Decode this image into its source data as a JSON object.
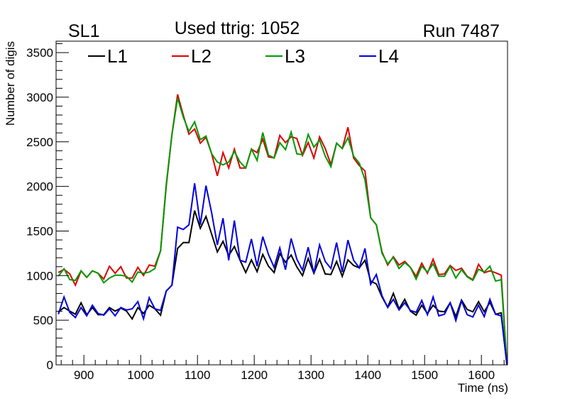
{
  "chart_data": {
    "type": "line",
    "title_left": "SL1",
    "title_center": "Used ttrig: 1052",
    "title_right": "Run 7487",
    "xlabel": "Time (ns)",
    "ylabel": "Number of digis",
    "xlim": [
      851,
      1646
    ],
    "ylim": [
      0,
      3628
    ],
    "xticks": [
      "900",
      "1000",
      "1100",
      "1200",
      "1300",
      "1400",
      "1500",
      "1600"
    ],
    "yticks": [
      "0",
      "500",
      "1000",
      "1500",
      "2000",
      "2500",
      "3000",
      "3500"
    ],
    "grid": false,
    "legend": "top",
    "x_start": 855,
    "x_step": 10,
    "series": [
      {
        "name": "L1",
        "color": "#000000",
        "values": [
          594,
          642,
          602,
          567,
          695,
          562,
          642,
          562,
          562,
          642,
          602,
          636,
          602,
          515,
          642,
          575,
          668,
          628,
          557,
          827,
          893,
          1305,
          1371,
          1371,
          1729,
          1530,
          1663,
          1464,
          1265,
          1384,
          1225,
          1326,
          1172,
          1034,
          1177,
          1045,
          1238,
          1106,
          1034,
          1247,
          1150,
          1231,
          1098,
          1000,
          1193,
          1026,
          1185,
          1018,
          1013,
          1159,
          992,
          1177,
          1114,
          1087,
          1172,
          939,
          907,
          761,
          647,
          801,
          628,
          734,
          602,
          557,
          668,
          575,
          668,
          602,
          594,
          695,
          541,
          726,
          620,
          594,
          708,
          594,
          700,
          567,
          583,
          0
        ]
      },
      {
        "name": "L2",
        "color": "#dd0000",
        "values": [
          1035,
          1070,
          1020,
          893,
          1053,
          981,
          1053,
          1026,
          962,
          1106,
          1026,
          1100,
          973,
          973,
          1092,
          1002,
          1119,
          1106,
          1278,
          2000,
          2580,
          3031,
          2800,
          2585,
          2644,
          2485,
          2550,
          2365,
          2119,
          2379,
          2206,
          2418,
          2206,
          2206,
          2418,
          2379,
          2530,
          2330,
          2320,
          2572,
          2490,
          2556,
          2538,
          2347,
          2493,
          2318,
          2556,
          2424,
          2246,
          2485,
          2424,
          2663,
          2318,
          2233,
          2174,
          1649,
          1570,
          1265,
          1119,
          1212,
          1119,
          1159,
          1092,
          992,
          1140,
          1026,
          1185,
          1013,
          1018,
          1114,
          1058,
          1084,
          992,
          955,
          1127,
          1032,
          1053,
          1032,
          1005,
          0
        ]
      },
      {
        "name": "L3",
        "color": "#009900",
        "values": [
          994,
          1077,
          955,
          947,
          1053,
          981,
          1053,
          1026,
          920,
          973,
          1005,
          1005,
          992,
          928,
          1040,
          1026,
          1040,
          1080,
          1278,
          2021,
          2580,
          2990,
          2776,
          2617,
          2723,
          2524,
          2564,
          2365,
          2273,
          2241,
          2273,
          2392,
          2273,
          2206,
          2418,
          2291,
          2604,
          2352,
          2318,
          2490,
          2412,
          2609,
          2365,
          2355,
          2583,
          2440,
          2519,
          2339,
          2220,
          2485,
          2424,
          2546,
          2339,
          2260,
          2074,
          1649,
          1570,
          1251,
          1132,
          1204,
          1080,
          1146,
          1092,
          960,
          1106,
          1040,
          1132,
          992,
          992,
          1106,
          973,
          1066,
          986,
          947,
          1072,
          1040,
          1106,
          939,
          955,
          0
        ]
      },
      {
        "name": "L4",
        "color": "#0000dd",
        "values": [
          567,
          761,
          589,
          530,
          642,
          549,
          668,
          575,
          557,
          628,
          549,
          642,
          615,
          628,
          708,
          515,
          753,
          628,
          610,
          827,
          893,
          1543,
          1517,
          1570,
          2034,
          1570,
          2008,
          1703,
          1344,
          1644,
          1172,
          1618,
          1172,
          1151,
          1411,
          1106,
          1437,
          1238,
          1092,
          1310,
          1066,
          1416,
          1185,
          1061,
          1318,
          1026,
          1344,
          1159,
          1080,
          1371,
          1040,
          1398,
          1172,
          1087,
          1305,
          902,
          1013,
          774,
          642,
          734,
          615,
          695,
          610,
          589,
          722,
          562,
          761,
          549,
          567,
          695,
          496,
          716,
          562,
          536,
          668,
          541,
          734,
          567,
          549,
          0
        ]
      }
    ]
  }
}
